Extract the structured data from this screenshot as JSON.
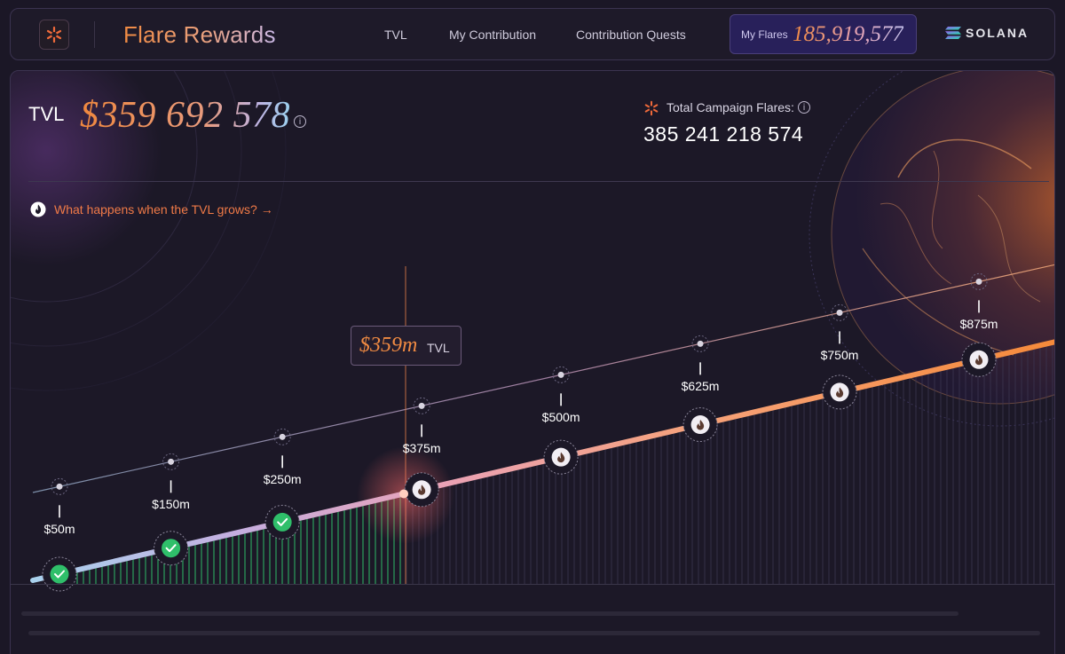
{
  "nav": {
    "brand": "Flare Rewards",
    "links": [
      "TVL",
      "My Contribution",
      "Contribution Quests"
    ],
    "my_flares_label": "My Flares",
    "my_flares_value": "185,919,577",
    "network": "SOLANA"
  },
  "tvl": {
    "label": "TVL",
    "value": "$359 692 578",
    "info_icon": "info-icon"
  },
  "campaign": {
    "label": "Total Campaign Flares:",
    "value": "385 241 218 574"
  },
  "question": {
    "text": "What happens when the TVL grows? →",
    "icon": "flame-icon"
  },
  "progress": {
    "current_tvl_millions": 359,
    "current_label": "$359m",
    "current_suffix": "TVL",
    "milestones": [
      {
        "label": "$50m",
        "value": 50,
        "reached": true
      },
      {
        "label": "$150m",
        "value": 150,
        "reached": true
      },
      {
        "label": "$250m",
        "value": 250,
        "reached": true
      },
      {
        "label": "$375m",
        "value": 375,
        "reached": false
      },
      {
        "label": "$500m",
        "value": 500,
        "reached": false
      },
      {
        "label": "$625m",
        "value": 625,
        "reached": false
      },
      {
        "label": "$750m",
        "value": 750,
        "reached": false
      },
      {
        "label": "$875m",
        "value": 875,
        "reached": false
      }
    ]
  },
  "colors": {
    "accent_orange": "#f08a42",
    "reached_green": "#2fbf6a",
    "line_blue": "#a9d2ee",
    "line_pink": "#e6a2b4"
  }
}
